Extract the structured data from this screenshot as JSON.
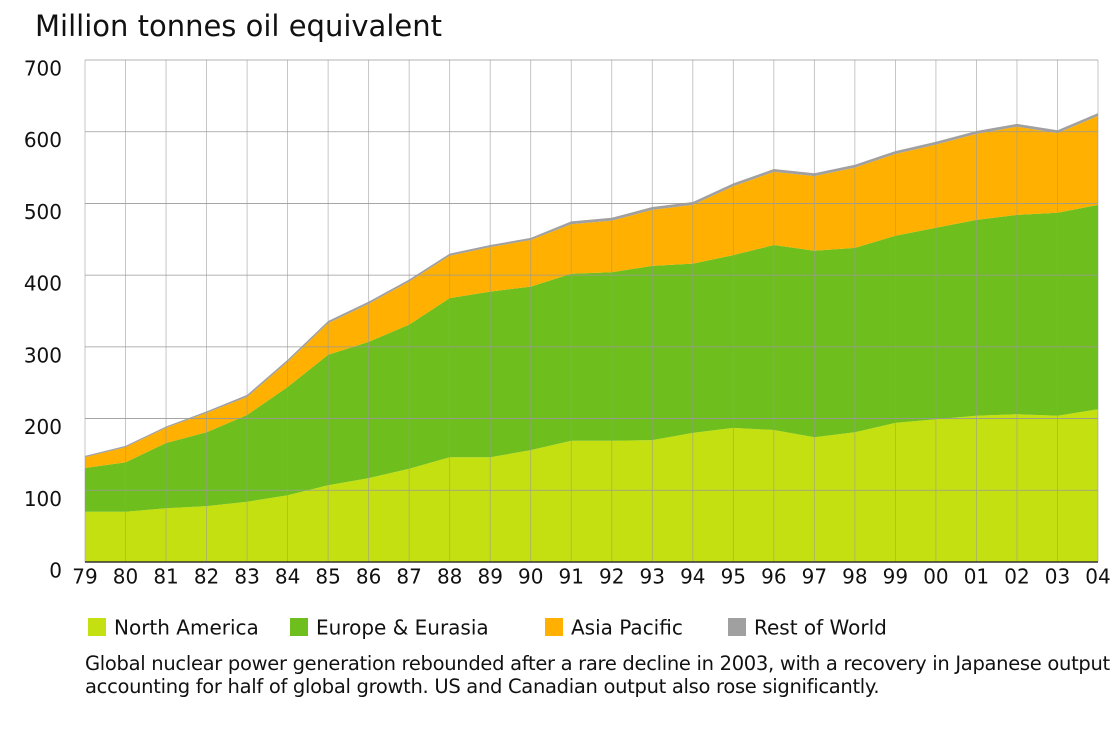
{
  "chart_data": {
    "type": "stacked_area",
    "title": "Million tonnes oil equivalent",
    "categories": [
      "79",
      "80",
      "81",
      "82",
      "83",
      "84",
      "85",
      "86",
      "87",
      "88",
      "89",
      "90",
      "91",
      "92",
      "93",
      "94",
      "95",
      "96",
      "97",
      "98",
      "99",
      "00",
      "01",
      "02",
      "03",
      "04"
    ],
    "series": [
      {
        "name": "North America",
        "color": "#c5e010",
        "values": [
          70,
          70,
          75,
          78,
          84,
          93,
          107,
          117,
          130,
          146,
          146,
          156,
          169,
          169,
          170,
          180,
          187,
          184,
          174,
          181,
          194,
          199,
          204,
          206,
          204,
          213
        ]
      },
      {
        "name": "Europe & Eurasia",
        "color": "#6ebe1e",
        "values": [
          61,
          69,
          91,
          103,
          121,
          151,
          182,
          190,
          201,
          222,
          231,
          228,
          233,
          235,
          243,
          236,
          241,
          258,
          260,
          257,
          261,
          267,
          273,
          278,
          283,
          285
        ]
      },
      {
        "name": "Asia Pacific",
        "color": "#ffb000",
        "values": [
          15,
          21,
          21,
          27,
          25,
          35,
          44,
          53,
          60,
          59,
          62,
          65,
          69,
          72,
          78,
          82,
          96,
          102,
          104,
          112,
          114,
          116,
          120,
          123,
          111,
          124
        ]
      },
      {
        "name": "Rest of World",
        "color": "#a0a0a0",
        "values": [
          2,
          2,
          2,
          2,
          3,
          3,
          3,
          3,
          3,
          3,
          3,
          3,
          4,
          4,
          4,
          4,
          4,
          4,
          4,
          4,
          4,
          4,
          4,
          4,
          4,
          4
        ]
      }
    ],
    "ylim": [
      0,
      700
    ],
    "yticks": [
      0,
      100,
      200,
      300,
      400,
      500,
      600,
      700
    ],
    "grid": true,
    "caption": "Global nuclear power generation rebounded after a rare decline in 2003, with a recovery in Japanese output accounting for half of global growth. US and Canadian output also rose significantly."
  }
}
